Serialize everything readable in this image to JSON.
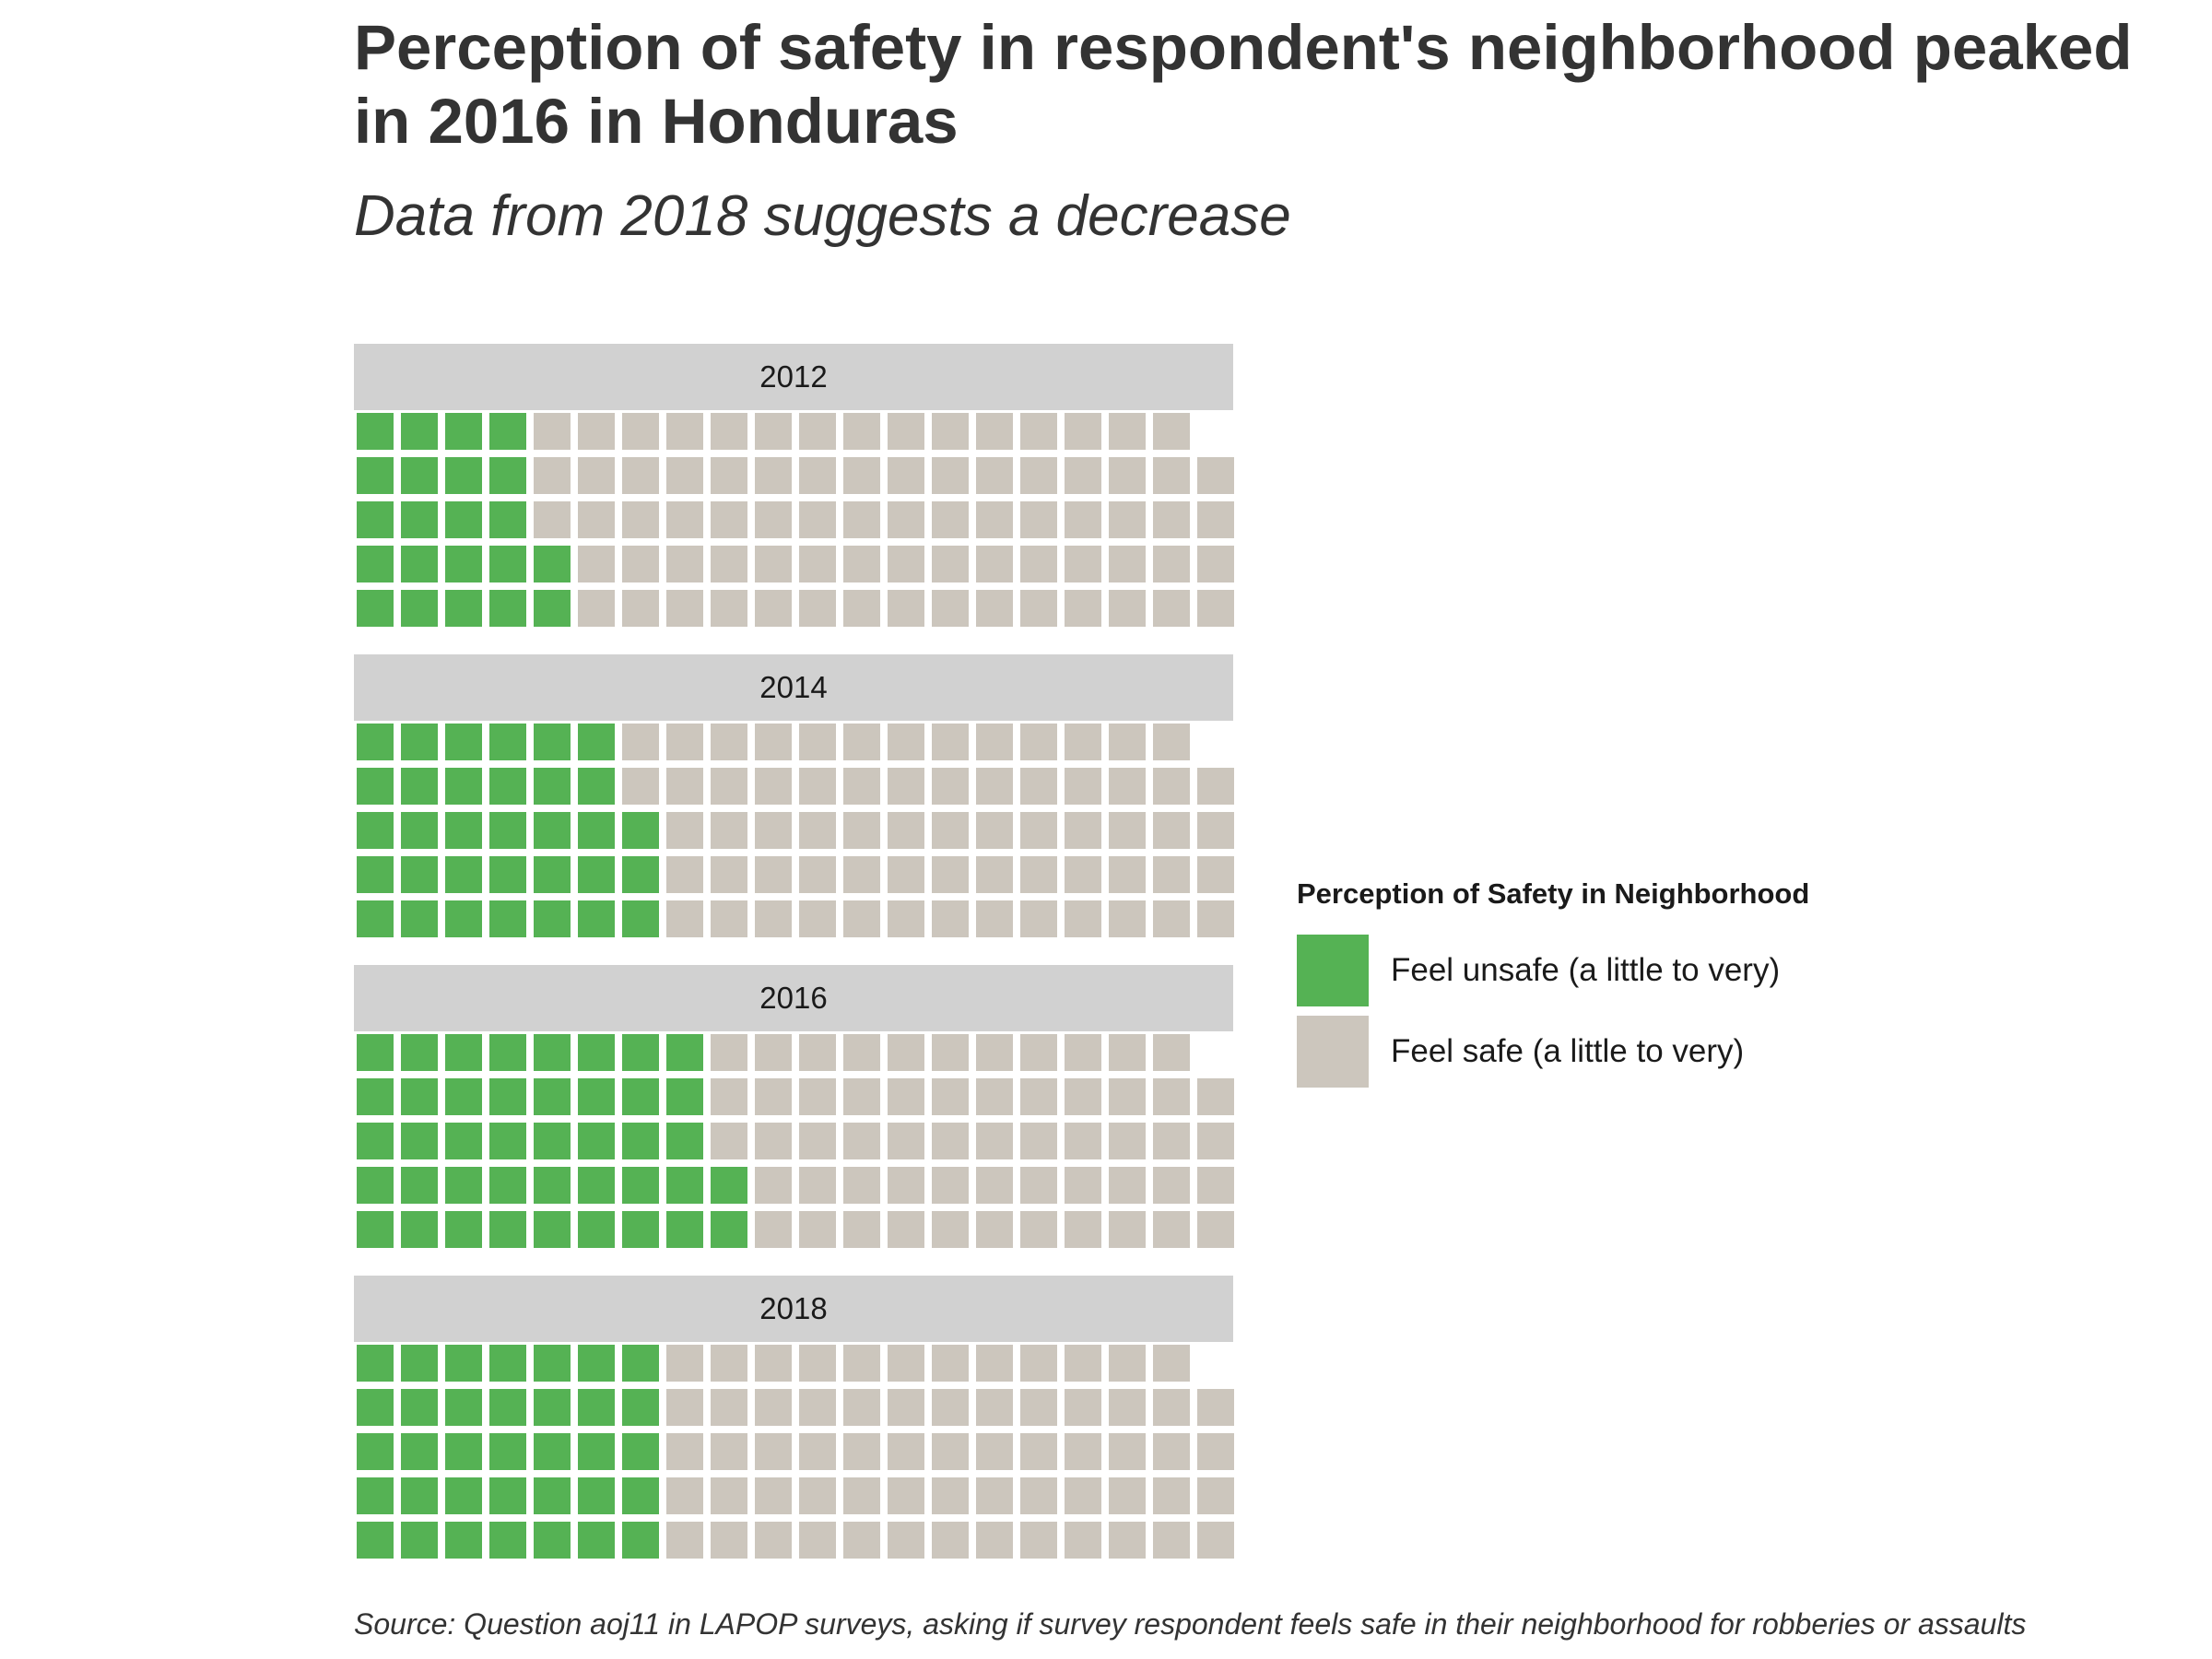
{
  "title": "Perception of safety in respondent's neighborhood peaked in 2016 in Honduras",
  "subtitle": "Data from 2018 suggests a decrease",
  "caption": "Source: Question aoj11 in LAPOP surveys, asking if survey respondent feels safe in their neighborhood for robberies or assaults",
  "legend": {
    "title": "Perception of Safety in Neighborhood",
    "items": [
      {
        "label": "Feel unsafe (a little to very)",
        "color": "#55b254"
      },
      {
        "label": "Feel safe (a little to very)",
        "color": "#ccc6bd"
      }
    ]
  },
  "chart_data": {
    "type": "waffle",
    "units_per_facet": 99,
    "grid": {
      "rows": 5,
      "columns": 20
    },
    "categories": [
      "Feel unsafe (a little to very)",
      "Feel safe (a little to very)"
    ],
    "colors": [
      "#55b254",
      "#ccc6bd"
    ],
    "facets": [
      {
        "year": "2012",
        "values": [
          22,
          77
        ]
      },
      {
        "year": "2014",
        "values": [
          33,
          66
        ]
      },
      {
        "year": "2016",
        "values": [
          42,
          57
        ]
      },
      {
        "year": "2018",
        "values": [
          35,
          64
        ]
      }
    ]
  }
}
